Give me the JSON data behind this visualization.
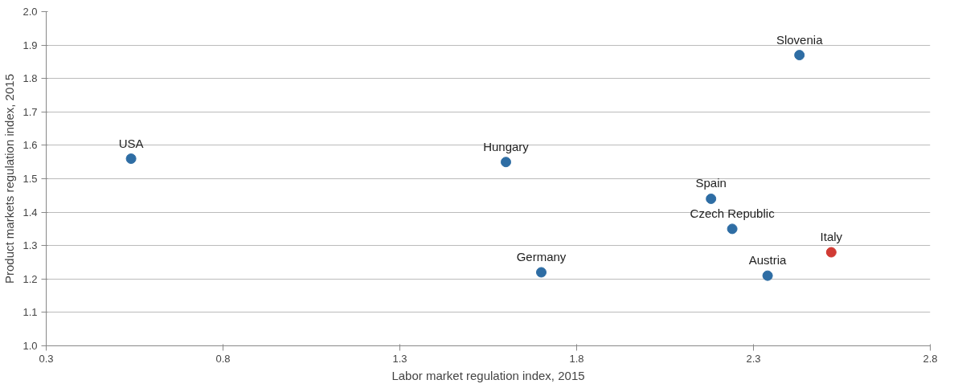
{
  "chart_data": {
    "type": "scatter",
    "xlabel": "Labor market regulation index, 2015",
    "ylabel": "Product markets regulation index, 2015",
    "xlim": [
      0.3,
      2.8
    ],
    "xticks": [
      0.3,
      0.8,
      1.3,
      1.8,
      2.3,
      2.8
    ],
    "ylim": [
      1.0,
      2.0
    ],
    "yticks": [
      {
        "value": 1.0,
        "label": "1.0"
      },
      1.1,
      1.2,
      1.3,
      1.4,
      1.5,
      1.6,
      1.7,
      1.8,
      1.9,
      {
        "value": 2.0,
        "label": "2.0"
      }
    ],
    "grid": "y",
    "legend": false,
    "marker": "circle",
    "series": [
      {
        "name": "USA",
        "color": "#2e6da4",
        "x": [
          0.54
        ],
        "values": [
          1.56
        ]
      },
      {
        "name": "Hungary",
        "color": "#2e6da4",
        "x": [
          1.6
        ],
        "values": [
          1.55
        ]
      },
      {
        "name": "Germany",
        "color": "#2e6da4",
        "x": [
          1.7
        ],
        "values": [
          1.22
        ]
      },
      {
        "name": "Spain",
        "color": "#2e6da4",
        "x": [
          2.18
        ],
        "values": [
          1.44
        ]
      },
      {
        "name": "Czech Republic",
        "color": "#2e6da4",
        "x": [
          2.24
        ],
        "values": [
          1.35
        ]
      },
      {
        "name": "Austria",
        "color": "#2e6da4",
        "x": [
          2.34
        ],
        "values": [
          1.21
        ]
      },
      {
        "name": "Italy",
        "color": "#d13b34",
        "x": [
          2.52
        ],
        "values": [
          1.28
        ]
      },
      {
        "name": "Slovenia",
        "color": "#2e6da4",
        "x": [
          2.43
        ],
        "values": [
          1.87
        ]
      }
    ]
  }
}
